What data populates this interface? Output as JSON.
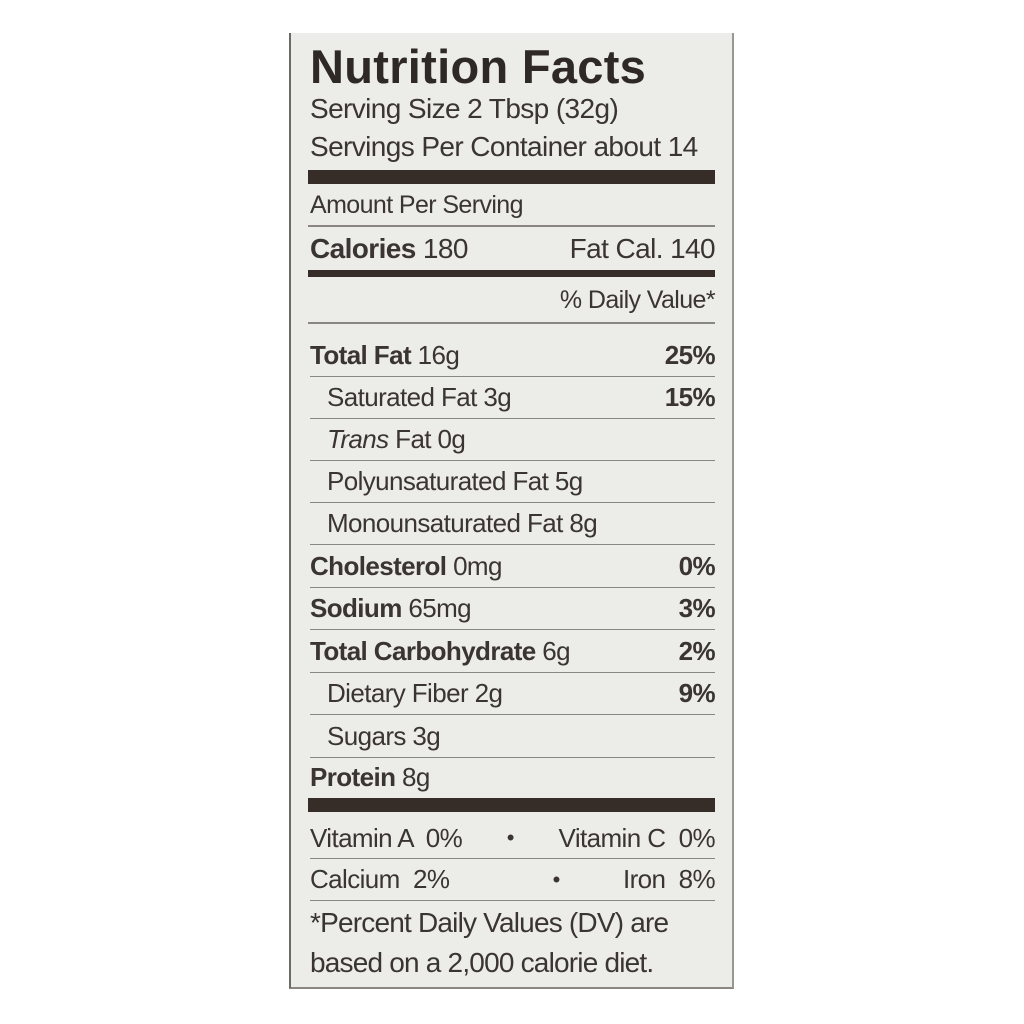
{
  "title": "Nutrition Facts",
  "serving_size": "Serving Size 2 Tbsp (32g)",
  "servings_per_container": "Servings Per Container about 14",
  "amount_per_serving": "Amount Per Serving",
  "calories_label": "Calories",
  "calories_value": "180",
  "fat_cal": "Fat Cal. 140",
  "daily_value_header": "% Daily Value*",
  "nutrients": [
    {
      "label": "Total Fat",
      "amount": "16g",
      "dv": "25%"
    },
    {
      "label": "Saturated Fat",
      "amount": "3g",
      "dv": "15%"
    },
    {
      "label": "Trans",
      "label_suffix": "Fat",
      "amount": "0g",
      "dv": ""
    },
    {
      "label": "Polyunsaturated Fat",
      "amount": "5g",
      "dv": ""
    },
    {
      "label": "Monounsaturated Fat",
      "amount": "8g",
      "dv": ""
    },
    {
      "label": "Cholesterol",
      "amount": "0mg",
      "dv": "0%"
    },
    {
      "label": "Sodium",
      "amount": "65mg",
      "dv": "3%"
    },
    {
      "label": "Total Carbohydrate",
      "amount": "6g",
      "dv": "2%"
    },
    {
      "label": "Dietary Fiber",
      "amount": "2g",
      "dv": "9%"
    },
    {
      "label": "Sugars",
      "amount": "3g",
      "dv": ""
    },
    {
      "label": "Protein",
      "amount": "8g",
      "dv": ""
    }
  ],
  "vitamins": [
    {
      "left": "Vitamin A  0%",
      "sep": "•",
      "right": "Vitamin C  0%"
    },
    {
      "left": "Calcium  2%",
      "sep": "•",
      "right": "Iron  8%"
    }
  ],
  "footnote_line1": "*Percent Daily Values (DV) are",
  "footnote_line2": "based on a 2,000 calorie diet."
}
